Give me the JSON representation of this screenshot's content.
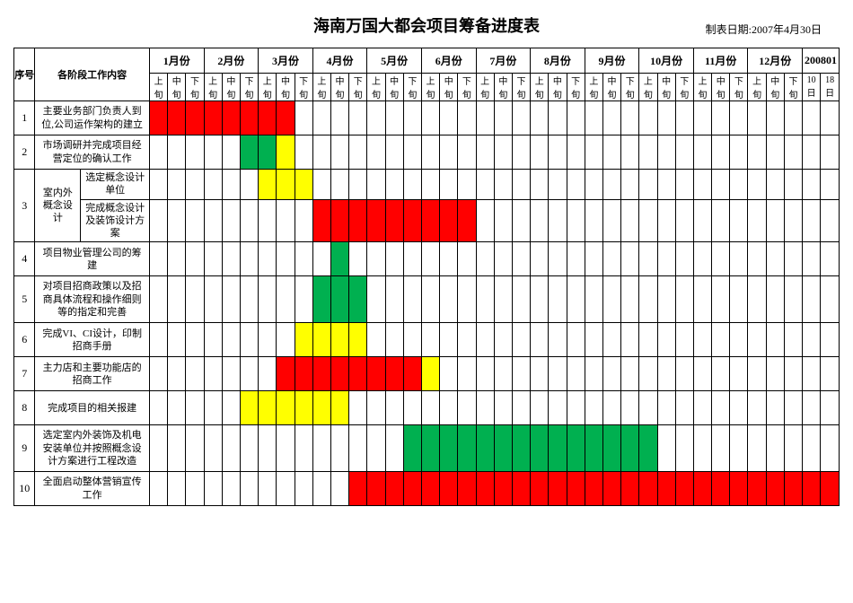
{
  "title": "海南万国大都会项目筹备进度表",
  "report_date_label": "制表日期:2007年4月30日",
  "colors": {
    "red": "#ff0000",
    "green": "#00b050",
    "yellow": "#ffff00",
    "white": "#ffffff",
    "border": "#000000"
  },
  "headers": {
    "seq": "序号",
    "task": "各阶段工作内容",
    "months": [
      "1月份",
      "2月份",
      "3月份",
      "4月份",
      "5月份",
      "6月份",
      "7月份",
      "8月份",
      "9月份",
      "10月份",
      "11月份",
      "12月份",
      "200801"
    ],
    "subcols_main": [
      "上旬",
      "中旬",
      "下旬"
    ],
    "subcols_last": [
      "10日",
      "18日"
    ]
  },
  "layout": {
    "month_count": 12,
    "main_subcols": 3,
    "last_subcols": 2,
    "total_cols": 38
  },
  "rows": [
    {
      "seq": "1",
      "task": "主要业务部门负责人到位,公司运作架构的建立",
      "bars": [
        {
          "start": 0,
          "end": 8,
          "color": "red"
        }
      ]
    },
    {
      "seq": "2",
      "task": "市场调研并完成项目经营定位的确认工作",
      "bars": [
        {
          "start": 5,
          "end": 7,
          "color": "green"
        },
        {
          "start": 7,
          "end": 8,
          "color": "yellow"
        }
      ]
    },
    {
      "seq": "3",
      "group_label": "室内外概念设计",
      "subrows": [
        {
          "task": "选定概念设计单位",
          "bars": [
            {
              "start": 6,
              "end": 9,
              "color": "yellow"
            }
          ]
        },
        {
          "task": "完成概念设计及装饰设计方案",
          "bars": [
            {
              "start": 9,
              "end": 18,
              "color": "red"
            }
          ]
        }
      ]
    },
    {
      "seq": "4",
      "task": "项目物业管理公司的筹建",
      "bars": [
        {
          "start": 10,
          "end": 11,
          "color": "green"
        }
      ]
    },
    {
      "seq": "5",
      "task": "对项目招商政策以及招商具体流程和操作细则等的指定和完善",
      "bars": [
        {
          "start": 9,
          "end": 12,
          "color": "green"
        }
      ]
    },
    {
      "seq": "6",
      "task": "完成VI、CI设计，印制招商手册",
      "bars": [
        {
          "start": 8,
          "end": 12,
          "color": "yellow"
        }
      ]
    },
    {
      "seq": "7",
      "task": "主力店和主要功能店的招商工作",
      "bars": [
        {
          "start": 7,
          "end": 15,
          "color": "red"
        },
        {
          "start": 15,
          "end": 16,
          "color": "yellow"
        }
      ]
    },
    {
      "seq": "8",
      "task": "完成项目的相关报建",
      "bars": [
        {
          "start": 5,
          "end": 11,
          "color": "yellow"
        }
      ]
    },
    {
      "seq": "9",
      "task": "选定室内外装饰及机电安装单位并按照概念设计方案进行工程改造",
      "bars": [
        {
          "start": 14,
          "end": 28,
          "color": "green"
        }
      ]
    },
    {
      "seq": "10",
      "task": "全面启动整体营销宣传工作",
      "bars": [
        {
          "start": 11,
          "end": 30,
          "color": "red"
        },
        {
          "start": 30,
          "end": 38,
          "color": "red"
        }
      ]
    }
  ]
}
